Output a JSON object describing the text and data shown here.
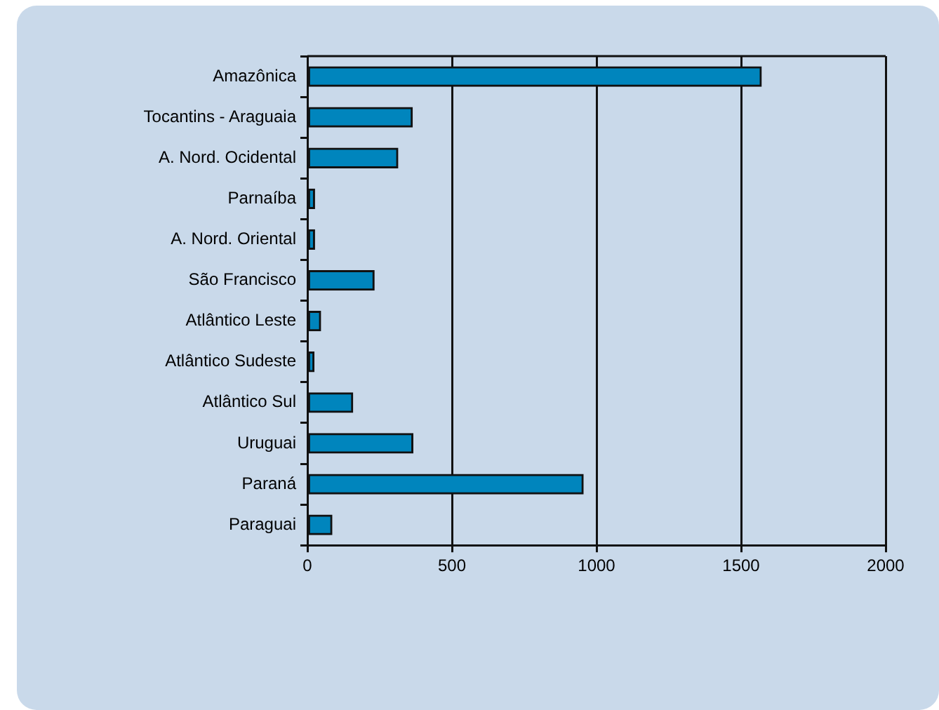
{
  "chart_data": {
    "type": "bar",
    "orientation": "horizontal",
    "categories": [
      "Amazônica",
      "Tocantins - Araguaia",
      "A. Nord. Ocidental",
      "Parnaíba",
      "A. Nord. Oriental",
      "São Francisco",
      "Atlântico Leste",
      "Atlântico Sudeste",
      "Atlântico Sul",
      "Uruguai",
      "Paraná",
      "Paraguai"
    ],
    "values": [
      1570,
      363,
      313,
      25,
      25,
      231,
      46,
      23,
      157,
      365,
      954,
      85
    ],
    "color": "#0085bd",
    "xlim": [
      0,
      2000
    ],
    "xticks": [
      0,
      500,
      1000,
      1500,
      2000
    ],
    "grid": "x",
    "legend": false
  }
}
